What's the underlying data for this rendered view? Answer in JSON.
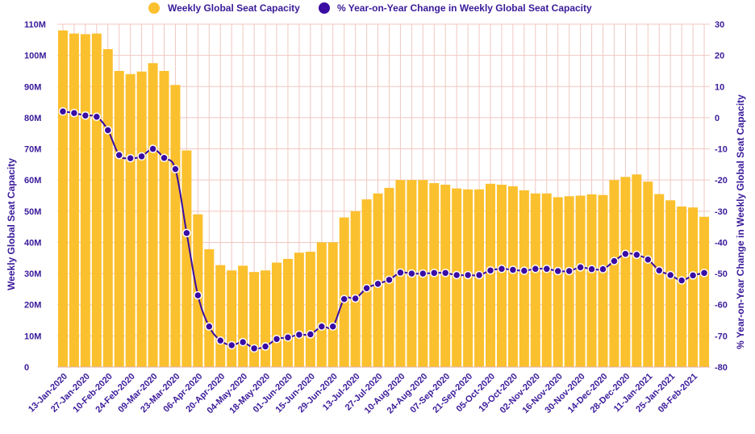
{
  "chart_data": {
    "type": "bar+line",
    "x": [
      "13-Jan-2020",
      "20-Jan-2020",
      "27-Jan-2020",
      "03-Feb-2020",
      "10-Feb-2020",
      "17-Feb-2020",
      "24-Feb-2020",
      "02-Mar-2020",
      "09-Mar-2020",
      "16-Mar-2020",
      "23-Mar-2020",
      "30-Mar-2020",
      "06-Apr-2020",
      "13-Apr-2020",
      "20-Apr-2020",
      "27-Apr-2020",
      "04-May-2020",
      "11-May-2020",
      "18-May-2020",
      "25-May-2020",
      "01-Jun-2020",
      "08-Jun-2020",
      "15-Jun-2020",
      "22-Jun-2020",
      "29-Jun-2020",
      "06-Jul-2020",
      "13-Jul-2020",
      "20-Jul-2020",
      "27-Jul-2020",
      "03-Aug-2020",
      "10-Aug-2020",
      "17-Aug-2020",
      "24-Aug-2020",
      "31-Aug-2020",
      "07-Sep-2020",
      "14-Sep-2020",
      "21-Sep-2020",
      "28-Sep-2020",
      "05-Oct-2020",
      "12-Oct-2020",
      "19-Oct-2020",
      "26-Oct-2020",
      "02-Nov-2020",
      "09-Nov-2020",
      "16-Nov-2020",
      "23-Nov-2020",
      "30-Nov-2020",
      "07-Dec-2020",
      "14-Dec-2020",
      "21-Dec-2020",
      "28-Dec-2020",
      "04-Jan-2021",
      "11-Jan-2021",
      "18-Jan-2021",
      "25-Jan-2021",
      "01-Feb-2021",
      "08-Feb-2021",
      "15-Feb-2021"
    ],
    "x_tick_labels": [
      "13-Jan-2020",
      "27-Jan-2020",
      "10-Feb-2020",
      "24-Feb-2020",
      "09-Mar-2020",
      "23-Mar-2020",
      "06-Apr-2020",
      "20-Apr-2020",
      "04-May-2020",
      "18-May-2020",
      "01-Jun-2020",
      "15-Jun-2020",
      "29-Jun-2020",
      "13-Jul-2020",
      "27-Jul-2020",
      "10-Aug-2020",
      "24-Aug-2020",
      "07-Sep-2020",
      "21-Sep-2020",
      "05-Oct-2020",
      "19-Oct-2020",
      "02-Nov-2020",
      "16-Nov-2020",
      "30-Nov-2020",
      "14-Dec-2020",
      "28-Dec-2020",
      "11-Jan-2021",
      "25-Jan-2021",
      "08-Feb-2021"
    ],
    "series": [
      {
        "name": "Weekly Global Seat Capacity",
        "type": "bar",
        "axis": "left",
        "color": "#fbc02d",
        "values": [
          108000000,
          107000000,
          106800000,
          107000000,
          102000000,
          95000000,
          94000000,
          94800000,
          97500000,
          95000000,
          90500000,
          69500000,
          49000000,
          37800000,
          32700000,
          31000000,
          32500000,
          30500000,
          31000000,
          33500000,
          34700000,
          36700000,
          37000000,
          40000000,
          40000000,
          48000000,
          50000000,
          53800000,
          55700000,
          57500000,
          60000000,
          60000000,
          60000000,
          59000000,
          58500000,
          57300000,
          57000000,
          57000000,
          58800000,
          58500000,
          58000000,
          56700000,
          55700000,
          55700000,
          54500000,
          54800000,
          55000000,
          55400000,
          55200000,
          60000000,
          61000000,
          61800000,
          59500000,
          55500000,
          53500000,
          51500000,
          51200000,
          48200000
        ]
      },
      {
        "name": "% Year-on-Year Change in Weekly Global Seat Capacity",
        "type": "line",
        "axis": "right",
        "color": "#3a0ca3",
        "values": [
          2,
          1.5,
          0.7,
          0.3,
          -4,
          -12,
          -13,
          -12.4,
          -10,
          -12.9,
          -16.5,
          -37,
          -57,
          -67,
          -71.5,
          -73,
          -72,
          -74,
          -73.4,
          -71,
          -70.5,
          -69.6,
          -69.5,
          -67,
          -67,
          -58.2,
          -58,
          -54.7,
          -53.3,
          -52,
          -49.7,
          -50,
          -50,
          -49.8,
          -49.8,
          -50.5,
          -50.5,
          -50.5,
          -49,
          -48.5,
          -48.8,
          -49.1,
          -48.5,
          -48.5,
          -49.2,
          -49.2,
          -48,
          -48.6,
          -48.6,
          -46,
          -43.7,
          -44,
          -45.5,
          -49,
          -50.5,
          -52.2,
          -50.6,
          -49.8
        ]
      }
    ],
    "y_left": {
      "label": "Weekly Global Seat Capacity",
      "ylim": [
        0,
        110000000
      ],
      "ticks": [
        0,
        10000000,
        20000000,
        30000000,
        40000000,
        50000000,
        60000000,
        70000000,
        80000000,
        90000000,
        100000000,
        110000000
      ],
      "tick_labels": [
        "0",
        "10M",
        "20M",
        "30M",
        "40M",
        "50M",
        "60M",
        "70M",
        "80M",
        "90M",
        "100M",
        "110M"
      ]
    },
    "y_right": {
      "label": "% Year-on-Year Change in Weekly Global Seat Capacity",
      "ylim": [
        -80,
        30
      ],
      "ticks": [
        30,
        20,
        10,
        0,
        -10,
        -20,
        -30,
        -40,
        -50,
        -60,
        -70,
        -80
      ],
      "tick_labels": [
        "30",
        "20",
        "10",
        "0",
        "-10",
        "-20",
        "-30",
        "-40",
        "-50",
        "-60",
        "-70",
        "-80"
      ]
    },
    "legend": {
      "position": "top-center",
      "items": [
        "Weekly Global Seat Capacity",
        "% Year-on-Year Change in Weekly Global Seat Capacity"
      ]
    },
    "grid": true
  }
}
